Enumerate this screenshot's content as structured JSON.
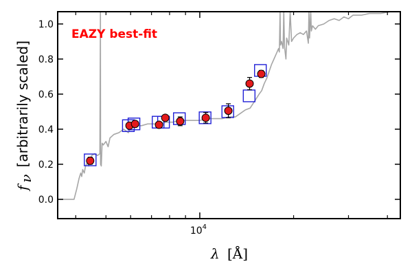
{
  "chart_data": {
    "type": "scatter",
    "title": "",
    "annotation": "EAZY best-fit",
    "xlabel_symbol": "λ",
    "xlabel_unit": "[Å]",
    "ylabel_symbol": "f",
    "ylabel_subscript": "ν",
    "ylabel_text": "[arbitrarily scaled]",
    "xscale": "log",
    "xlim": [
      3500,
      44000
    ],
    "ylim": [
      -0.11,
      1.07
    ],
    "x_major_tick_labels": [
      {
        "value": 10000,
        "base": "10",
        "exp": "4"
      }
    ],
    "x_minor_ticks": [
      4000,
      5000,
      6000,
      7000,
      8000,
      9000,
      20000,
      30000,
      40000
    ],
    "y_ticks": [
      0.0,
      0.2,
      0.4,
      0.6,
      0.8,
      1.0
    ],
    "y_tick_labels": [
      "0.0",
      "0.2",
      "0.4",
      "0.6",
      "0.8",
      "1.0"
    ],
    "grid": false,
    "colors": {
      "model_line": "#a6a6a6",
      "observed_fill": "#e41a1c",
      "model_box": "#1f1fd6",
      "annotation": "#ff0000",
      "axes": "#000000"
    },
    "series": [
      {
        "style": "line",
        "points": [
          [
            3500,
            0
          ],
          [
            3950,
            0
          ],
          [
            4030,
            0.06
          ],
          [
            4100,
            0.12
          ],
          [
            4150,
            0.15
          ],
          [
            4180,
            0.13
          ],
          [
            4210,
            0.17
          ],
          [
            4260,
            0.15
          ],
          [
            4300,
            0.19
          ],
          [
            4360,
            0.21
          ],
          [
            4400,
            0.19
          ],
          [
            4450,
            0.23
          ],
          [
            4500,
            0.25
          ],
          [
            4600,
            0.26
          ],
          [
            4700,
            0.25
          ],
          [
            4780,
            0.26
          ],
          [
            4800,
            1.07
          ],
          [
            4805,
            0.2
          ],
          [
            4830,
            0.19
          ],
          [
            4860,
            0.32
          ],
          [
            4900,
            0.31
          ],
          [
            5000,
            0.33
          ],
          [
            5080,
            0.3
          ],
          [
            5150,
            0.35
          ],
          [
            5300,
            0.37
          ],
          [
            5500,
            0.38
          ],
          [
            5700,
            0.4
          ],
          [
            5900,
            0.38
          ],
          [
            6000,
            0.41
          ],
          [
            6200,
            0.42
          ],
          [
            6500,
            0.42
          ],
          [
            6800,
            0.43
          ],
          [
            7100,
            0.43
          ],
          [
            7400,
            0.43
          ],
          [
            7800,
            0.44
          ],
          [
            8200,
            0.44
          ],
          [
            8600,
            0.45
          ],
          [
            9000,
            0.45
          ],
          [
            9500,
            0.45
          ],
          [
            10000,
            0.45
          ],
          [
            10600,
            0.46
          ],
          [
            11200,
            0.46
          ],
          [
            11800,
            0.46
          ],
          [
            12400,
            0.47
          ],
          [
            13000,
            0.47
          ],
          [
            13500,
            0.49
          ],
          [
            14000,
            0.51
          ],
          [
            14500,
            0.52
          ],
          [
            15000,
            0.56
          ],
          [
            15500,
            0.6
          ],
          [
            15800,
            0.62
          ],
          [
            16100,
            0.66
          ],
          [
            16400,
            0.69
          ],
          [
            16700,
            0.73
          ],
          [
            17000,
            0.77
          ],
          [
            17300,
            0.8
          ],
          [
            17600,
            0.83
          ],
          [
            17900,
            0.86
          ],
          [
            18000,
            0.84
          ],
          [
            18100,
            1.07
          ],
          [
            18150,
            0.88
          ],
          [
            18300,
            0.9
          ],
          [
            18500,
            0.86
          ],
          [
            18600,
            1.07
          ],
          [
            18700,
            0.87
          ],
          [
            18900,
            0.8
          ],
          [
            19000,
            0.92
          ],
          [
            19300,
            0.88
          ],
          [
            19500,
            1.07
          ],
          [
            19700,
            0.9
          ],
          [
            20000,
            0.92
          ],
          [
            20500,
            0.94
          ],
          [
            21000,
            0.95
          ],
          [
            21500,
            0.94
          ],
          [
            22000,
            0.96
          ],
          [
            22300,
            0.89
          ],
          [
            22400,
            1.07
          ],
          [
            22500,
            0.92
          ],
          [
            22700,
            1.07
          ],
          [
            22800,
            0.96
          ],
          [
            23000,
            0.99
          ],
          [
            23500,
            0.97
          ],
          [
            24000,
            0.99
          ],
          [
            25000,
            1.0
          ],
          [
            26000,
            1.02
          ],
          [
            27000,
            1.03
          ],
          [
            28000,
            1.02
          ],
          [
            29000,
            1.04
          ],
          [
            30000,
            1.03
          ],
          [
            31000,
            1.05
          ],
          [
            33000,
            1.05
          ],
          [
            35000,
            1.06
          ],
          [
            38000,
            1.06
          ],
          [
            41000,
            1.07
          ],
          [
            44000,
            1.07
          ]
        ]
      },
      {
        "style": "squares",
        "points": [
          [
            4450,
            0.225
          ],
          [
            5900,
            0.42
          ],
          [
            6150,
            0.43
          ],
          [
            7350,
            0.44
          ],
          [
            7650,
            0.44
          ],
          [
            8600,
            0.46
          ],
          [
            10400,
            0.465
          ],
          [
            12300,
            0.5
          ],
          [
            14400,
            0.59
          ],
          [
            15650,
            0.735
          ]
        ]
      },
      {
        "style": "points_with_errorbars",
        "points": [
          {
            "x": 4450,
            "y": 0.22,
            "err": 0.02
          },
          {
            "x": 5950,
            "y": 0.42,
            "err": 0.015
          },
          {
            "x": 6200,
            "y": 0.43,
            "err": 0.015
          },
          {
            "x": 7400,
            "y": 0.425,
            "err": 0.015
          },
          {
            "x": 7750,
            "y": 0.465,
            "err": 0.015
          },
          {
            "x": 8650,
            "y": 0.445,
            "err": 0.025
          },
          {
            "x": 10450,
            "y": 0.465,
            "err": 0.03
          },
          {
            "x": 12350,
            "y": 0.505,
            "err": 0.04
          },
          {
            "x": 14450,
            "y": 0.66,
            "err": 0.035
          },
          {
            "x": 15750,
            "y": 0.715,
            "err": 0.02
          }
        ]
      }
    ]
  }
}
